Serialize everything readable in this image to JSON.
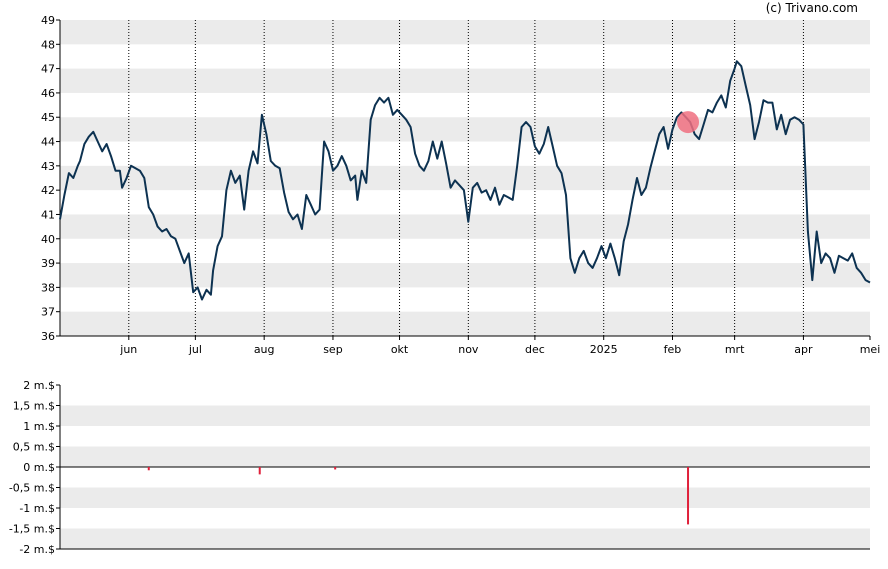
{
  "copyright": "(c) Trivano.com",
  "chart_data": [
    {
      "type": "line",
      "ylim": [
        36,
        49
      ],
      "yticks": [
        "36",
        "37",
        "38",
        "39",
        "40",
        "41",
        "42",
        "43",
        "44",
        "45",
        "46",
        "47",
        "48",
        "49"
      ],
      "xlim": [
        "2024-05-01",
        "2025-05-01"
      ],
      "xticks": [
        {
          "date": "2024-06-01",
          "label": "jun"
        },
        {
          "date": "2024-07-01",
          "label": "jul"
        },
        {
          "date": "2024-08-01",
          "label": "aug"
        },
        {
          "date": "2024-09-01",
          "label": "sep"
        },
        {
          "date": "2024-10-01",
          "label": "okt"
        },
        {
          "date": "2024-11-01",
          "label": "nov"
        },
        {
          "date": "2024-12-01",
          "label": "dec"
        },
        {
          "date": "2025-01-01",
          "label": "2025"
        },
        {
          "date": "2025-02-01",
          "label": "feb"
        },
        {
          "date": "2025-03-01",
          "label": "mrt"
        },
        {
          "date": "2025-04-01",
          "label": "apr"
        },
        {
          "date": "2025-05-01",
          "label": "mei"
        }
      ],
      "grid": true,
      "line_color": "#0d3251",
      "marker_color": "#f07080",
      "marker": {
        "date": "2025-02-08",
        "value": 44.8
      },
      "series": [
        {
          "values": [
            [
              "2024-05-01",
              40.8
            ],
            [
              "2024-05-03",
              41.8
            ],
            [
              "2024-05-05",
              42.7
            ],
            [
              "2024-05-07",
              42.5
            ],
            [
              "2024-05-09",
              43.0
            ],
            [
              "2024-05-10",
              43.2
            ],
            [
              "2024-05-12",
              43.9
            ],
            [
              "2024-05-14",
              44.2
            ],
            [
              "2024-05-16",
              44.4
            ],
            [
              "2024-05-18",
              44.0
            ],
            [
              "2024-05-20",
              43.6
            ],
            [
              "2024-05-22",
              43.9
            ],
            [
              "2024-05-24",
              43.4
            ],
            [
              "2024-05-26",
              42.8
            ],
            [
              "2024-05-28",
              42.8
            ],
            [
              "2024-05-29",
              42.1
            ],
            [
              "2024-05-31",
              42.5
            ],
            [
              "2024-06-02",
              43.0
            ],
            [
              "2024-06-04",
              42.9
            ],
            [
              "2024-06-06",
              42.8
            ],
            [
              "2024-06-08",
              42.5
            ],
            [
              "2024-06-10",
              41.3
            ],
            [
              "2024-06-12",
              41.0
            ],
            [
              "2024-06-14",
              40.5
            ],
            [
              "2024-06-16",
              40.3
            ],
            [
              "2024-06-18",
              40.4
            ],
            [
              "2024-06-20",
              40.1
            ],
            [
              "2024-06-22",
              40.0
            ],
            [
              "2024-06-24",
              39.5
            ],
            [
              "2024-06-26",
              39.0
            ],
            [
              "2024-06-28",
              39.4
            ],
            [
              "2024-06-30",
              37.8
            ],
            [
              "2024-07-02",
              38.0
            ],
            [
              "2024-07-04",
              37.5
            ],
            [
              "2024-07-06",
              37.9
            ],
            [
              "2024-07-08",
              37.7
            ],
            [
              "2024-07-09",
              38.7
            ],
            [
              "2024-07-11",
              39.7
            ],
            [
              "2024-07-13",
              40.1
            ],
            [
              "2024-07-15",
              42.0
            ],
            [
              "2024-07-17",
              42.8
            ],
            [
              "2024-07-19",
              42.3
            ],
            [
              "2024-07-21",
              42.6
            ],
            [
              "2024-07-23",
              41.2
            ],
            [
              "2024-07-25",
              42.8
            ],
            [
              "2024-07-27",
              43.6
            ],
            [
              "2024-07-29",
              43.1
            ],
            [
              "2024-07-31",
              45.1
            ],
            [
              "2024-08-02",
              44.3
            ],
            [
              "2024-08-04",
              43.2
            ],
            [
              "2024-08-06",
              43.0
            ],
            [
              "2024-08-08",
              42.9
            ],
            [
              "2024-08-10",
              41.9
            ],
            [
              "2024-08-12",
              41.1
            ],
            [
              "2024-08-14",
              40.8
            ],
            [
              "2024-08-16",
              41.0
            ],
            [
              "2024-08-18",
              40.4
            ],
            [
              "2024-08-20",
              41.8
            ],
            [
              "2024-08-22",
              41.4
            ],
            [
              "2024-08-24",
              41.0
            ],
            [
              "2024-08-26",
              41.2
            ],
            [
              "2024-08-28",
              44.0
            ],
            [
              "2024-08-30",
              43.6
            ],
            [
              "2024-09-01",
              42.8
            ],
            [
              "2024-09-03",
              43.0
            ],
            [
              "2024-09-05",
              43.4
            ],
            [
              "2024-09-07",
              43.0
            ],
            [
              "2024-09-09",
              42.4
            ],
            [
              "2024-09-11",
              42.6
            ],
            [
              "2024-09-12",
              41.6
            ],
            [
              "2024-09-14",
              42.8
            ],
            [
              "2024-09-16",
              42.3
            ],
            [
              "2024-09-18",
              44.9
            ],
            [
              "2024-09-20",
              45.5
            ],
            [
              "2024-09-22",
              45.8
            ],
            [
              "2024-09-24",
              45.6
            ],
            [
              "2024-09-26",
              45.8
            ],
            [
              "2024-09-28",
              45.1
            ],
            [
              "2024-09-30",
              45.3
            ],
            [
              "2024-10-02",
              45.1
            ],
            [
              "2024-10-04",
              44.9
            ],
            [
              "2024-10-06",
              44.6
            ],
            [
              "2024-10-08",
              43.5
            ],
            [
              "2024-10-10",
              43.0
            ],
            [
              "2024-10-12",
              42.8
            ],
            [
              "2024-10-14",
              43.2
            ],
            [
              "2024-10-16",
              44.0
            ],
            [
              "2024-10-18",
              43.3
            ],
            [
              "2024-10-20",
              44.0
            ],
            [
              "2024-10-22",
              43.1
            ],
            [
              "2024-10-24",
              42.1
            ],
            [
              "2024-10-26",
              42.4
            ],
            [
              "2024-10-28",
              42.2
            ],
            [
              "2024-10-30",
              42.0
            ],
            [
              "2024-11-01",
              40.7
            ],
            [
              "2024-11-03",
              42.1
            ],
            [
              "2024-11-05",
              42.3
            ],
            [
              "2024-11-07",
              41.9
            ],
            [
              "2024-11-09",
              42.0
            ],
            [
              "2024-11-11",
              41.6
            ],
            [
              "2024-11-13",
              42.1
            ],
            [
              "2024-11-15",
              41.4
            ],
            [
              "2024-11-17",
              41.8
            ],
            [
              "2024-11-19",
              41.7
            ],
            [
              "2024-11-21",
              41.6
            ],
            [
              "2024-11-23",
              43.0
            ],
            [
              "2024-11-25",
              44.6
            ],
            [
              "2024-11-27",
              44.8
            ],
            [
              "2024-11-29",
              44.6
            ],
            [
              "2024-12-01",
              43.8
            ],
            [
              "2024-12-03",
              43.5
            ],
            [
              "2024-12-05",
              43.9
            ],
            [
              "2024-12-07",
              44.6
            ],
            [
              "2024-12-09",
              43.8
            ],
            [
              "2024-12-11",
              43.0
            ],
            [
              "2024-12-13",
              42.7
            ],
            [
              "2024-12-15",
              41.8
            ],
            [
              "2024-12-17",
              39.2
            ],
            [
              "2024-12-19",
              38.6
            ],
            [
              "2024-12-21",
              39.2
            ],
            [
              "2024-12-23",
              39.5
            ],
            [
              "2024-12-25",
              39.0
            ],
            [
              "2024-12-27",
              38.8
            ],
            [
              "2024-12-29",
              39.2
            ],
            [
              "2024-12-31",
              39.7
            ],
            [
              "2025-01-02",
              39.2
            ],
            [
              "2025-01-04",
              39.8
            ],
            [
              "2025-01-06",
              39.2
            ],
            [
              "2025-01-08",
              38.5
            ],
            [
              "2025-01-10",
              39.9
            ],
            [
              "2025-01-12",
              40.6
            ],
            [
              "2025-01-14",
              41.6
            ],
            [
              "2025-01-16",
              42.5
            ],
            [
              "2025-01-18",
              41.8
            ],
            [
              "2025-01-20",
              42.1
            ],
            [
              "2025-01-22",
              42.9
            ],
            [
              "2025-01-24",
              43.6
            ],
            [
              "2025-01-26",
              44.3
            ],
            [
              "2025-01-28",
              44.6
            ],
            [
              "2025-01-30",
              43.7
            ],
            [
              "2025-02-01",
              44.5
            ],
            [
              "2025-02-03",
              45.0
            ],
            [
              "2025-02-05",
              45.2
            ],
            [
              "2025-02-07",
              45.0
            ],
            [
              "2025-02-09",
              44.8
            ],
            [
              "2025-02-11",
              44.3
            ],
            [
              "2025-02-13",
              44.1
            ],
            [
              "2025-02-15",
              44.7
            ],
            [
              "2025-02-17",
              45.3
            ],
            [
              "2025-02-19",
              45.2
            ],
            [
              "2025-02-21",
              45.6
            ],
            [
              "2025-02-23",
              45.9
            ],
            [
              "2025-02-25",
              45.4
            ],
            [
              "2025-02-27",
              46.5
            ],
            [
              "2025-03-01",
              47.0
            ],
            [
              "2025-03-02",
              47.3
            ],
            [
              "2025-03-04",
              47.1
            ],
            [
              "2025-03-06",
              46.3
            ],
            [
              "2025-03-08",
              45.5
            ],
            [
              "2025-03-10",
              44.1
            ],
            [
              "2025-03-12",
              44.8
            ],
            [
              "2025-03-14",
              45.7
            ],
            [
              "2025-03-16",
              45.6
            ],
            [
              "2025-03-18",
              45.6
            ],
            [
              "2025-03-20",
              44.5
            ],
            [
              "2025-03-22",
              45.1
            ],
            [
              "2025-03-24",
              44.3
            ],
            [
              "2025-03-26",
              44.9
            ],
            [
              "2025-03-28",
              45.0
            ],
            [
              "2025-03-30",
              44.9
            ],
            [
              "2025-04-01",
              44.7
            ],
            [
              "2025-04-03",
              40.3
            ],
            [
              "2025-04-05",
              38.3
            ],
            [
              "2025-04-07",
              40.3
            ],
            [
              "2025-04-09",
              39.0
            ],
            [
              "2025-04-11",
              39.4
            ],
            [
              "2025-04-13",
              39.2
            ],
            [
              "2025-04-15",
              38.6
            ],
            [
              "2025-04-17",
              39.3
            ],
            [
              "2025-04-19",
              39.2
            ],
            [
              "2025-04-21",
              39.1
            ],
            [
              "2025-04-23",
              39.4
            ],
            [
              "2025-04-25",
              38.8
            ],
            [
              "2025-04-27",
              38.6
            ],
            [
              "2025-04-29",
              38.3
            ],
            [
              "2025-05-01",
              38.2
            ]
          ]
        }
      ]
    },
    {
      "type": "bar",
      "ylim": [
        -2,
        2
      ],
      "yticks": [
        "-2 m.$",
        "-1,5 m.$",
        "-1 m.$",
        "-0,5 m.$",
        "0 m.$",
        "0,5 m.$",
        "1 m.$",
        "1,5 m.$",
        "2 m.$"
      ],
      "grid": true,
      "bar_color": "#e0203a",
      "bars": [
        {
          "date": "2024-06-10",
          "value": -0.08
        },
        {
          "date": "2024-07-30",
          "value": -0.18
        },
        {
          "date": "2024-09-02",
          "value": -0.06
        },
        {
          "date": "2025-02-08",
          "value": -1.4
        }
      ]
    }
  ]
}
